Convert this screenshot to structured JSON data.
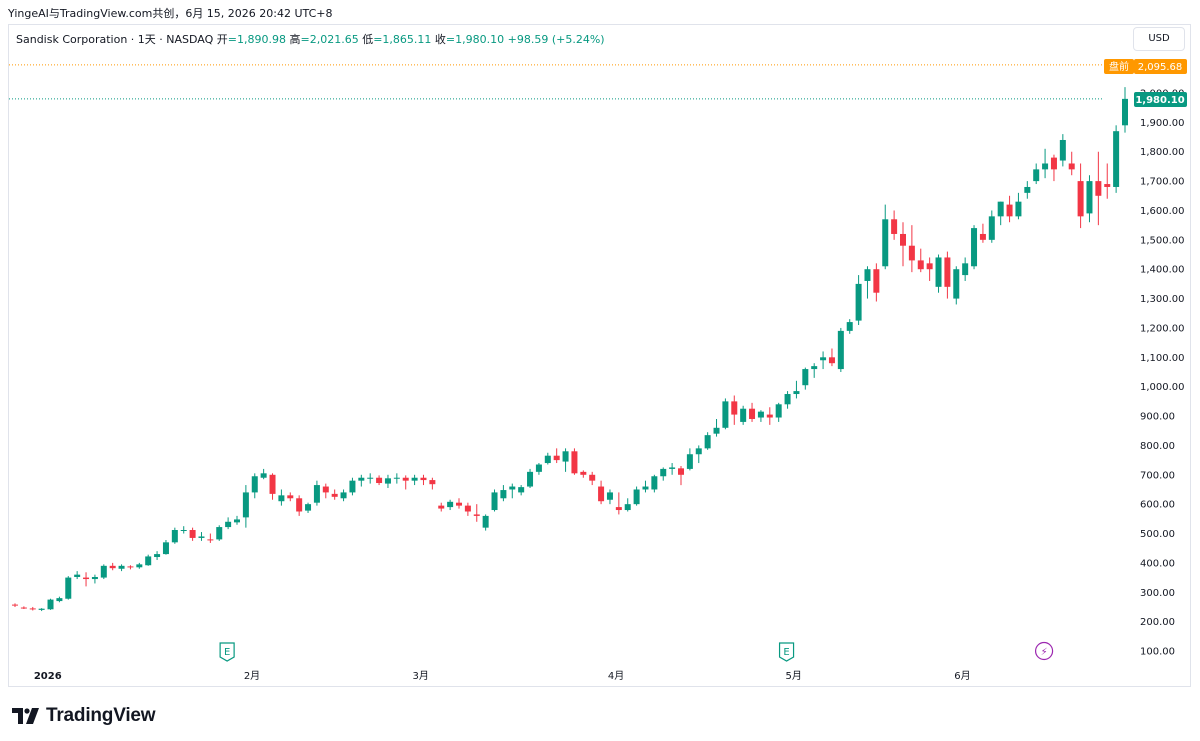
{
  "header": {
    "source_line": "YingeAI与TradingView.com共创，6月 15, 2026 20:42 UTC+8"
  },
  "legend": {
    "symbol": "Sandisk Corporation · 1天 · NASDAQ",
    "open_label": "开",
    "open": "=1,890.98",
    "high_label": "高",
    "high": "=2,021.65",
    "low_label": "低",
    "low": "=1,865.11",
    "close_label": "收",
    "close": "=1,980.10",
    "change": "+98.59 (+5.24%)"
  },
  "currency_button": "USD",
  "badges": {
    "premarket_label": "盘前",
    "premarket_value": "2,095.68",
    "last_value": "1,980.10"
  },
  "colors": {
    "up": "#089981",
    "down": "#f23645",
    "premarket": "#ff9800",
    "grid": "#e0e3eb"
  },
  "brand": {
    "name": "TradingView"
  },
  "chart_data": {
    "type": "candlestick",
    "y_axis": {
      "ticks": [
        "100.00",
        "200.00",
        "300.00",
        "400.00",
        "500.00",
        "600.00",
        "700.00",
        "800.00",
        "900.00",
        "1,000.00",
        "1,100.00",
        "1,200.00",
        "1,300.00",
        "1,400.00",
        "1,500.00",
        "1,600.00",
        "1,700.00",
        "1,800.00",
        "1,900.00",
        "2,000.00"
      ],
      "range": [
        75,
        2100
      ]
    },
    "x_axis": {
      "labels": [
        "2026",
        "2月",
        "3月",
        "4月",
        "5月",
        "6月"
      ],
      "label_index": [
        2,
        25,
        44,
        66,
        86,
        105
      ]
    },
    "event_markers": [
      {
        "type": "earnings",
        "symbol": "E",
        "index": 24
      },
      {
        "type": "earnings",
        "symbol": "E",
        "index": 87
      },
      {
        "type": "dividend",
        "symbol": "⚡",
        "index": 116
      }
    ],
    "price_lines": [
      {
        "name": "premarket",
        "value": 2095.68
      },
      {
        "name": "last",
        "value": 1980.1
      }
    ],
    "ohlc": [
      [
        258,
        262,
        250,
        255
      ],
      [
        248,
        252,
        243,
        247
      ],
      [
        245,
        250,
        238,
        242
      ],
      [
        240,
        246,
        236,
        244
      ],
      [
        242,
        278,
        240,
        275
      ],
      [
        270,
        285,
        266,
        280
      ],
      [
        278,
        355,
        275,
        350
      ],
      [
        352,
        372,
        345,
        360
      ],
      [
        350,
        368,
        320,
        345
      ],
      [
        345,
        360,
        330,
        352
      ],
      [
        350,
        395,
        345,
        390
      ],
      [
        390,
        400,
        375,
        382
      ],
      [
        380,
        395,
        372,
        390
      ],
      [
        388,
        392,
        378,
        385
      ],
      [
        385,
        400,
        380,
        395
      ],
      [
        392,
        428,
        390,
        422
      ],
      [
        420,
        440,
        410,
        430
      ],
      [
        430,
        478,
        428,
        470
      ],
      [
        470,
        520,
        465,
        512
      ],
      [
        510,
        525,
        500,
        512
      ],
      [
        512,
        520,
        475,
        485
      ],
      [
        485,
        505,
        475,
        490
      ],
      [
        480,
        500,
        468,
        478
      ],
      [
        480,
        528,
        475,
        522
      ],
      [
        522,
        555,
        515,
        540
      ],
      [
        538,
        560,
        530,
        548
      ],
      [
        555,
        665,
        520,
        640
      ],
      [
        640,
        705,
        620,
        695
      ],
      [
        690,
        720,
        685,
        705
      ],
      [
        700,
        705,
        615,
        635
      ],
      [
        610,
        650,
        595,
        630
      ],
      [
        630,
        640,
        610,
        620
      ],
      [
        620,
        630,
        560,
        575
      ],
      [
        578,
        605,
        570,
        600
      ],
      [
        605,
        680,
        595,
        665
      ],
      [
        660,
        670,
        620,
        640
      ],
      [
        635,
        650,
        615,
        625
      ],
      [
        620,
        650,
        610,
        640
      ],
      [
        640,
        690,
        630,
        680
      ],
      [
        680,
        700,
        660,
        690
      ],
      [
        690,
        705,
        670,
        690
      ],
      [
        690,
        698,
        665,
        672
      ],
      [
        670,
        700,
        655,
        688
      ],
      [
        688,
        705,
        670,
        690
      ],
      [
        690,
        698,
        650,
        680
      ],
      [
        680,
        700,
        665,
        690
      ],
      [
        690,
        700,
        665,
        682
      ],
      [
        682,
        690,
        650,
        668
      ],
      [
        595,
        605,
        575,
        585
      ],
      [
        590,
        615,
        580,
        608
      ],
      [
        605,
        620,
        585,
        595
      ],
      [
        595,
        605,
        560,
        575
      ],
      [
        565,
        600,
        540,
        560
      ],
      [
        520,
        565,
        510,
        560
      ],
      [
        580,
        650,
        575,
        640
      ],
      [
        620,
        665,
        610,
        648
      ],
      [
        650,
        670,
        620,
        660
      ],
      [
        640,
        665,
        630,
        658
      ],
      [
        660,
        720,
        655,
        710
      ],
      [
        710,
        740,
        700,
        735
      ],
      [
        740,
        775,
        735,
        765
      ],
      [
        765,
        790,
        740,
        750
      ],
      [
        745,
        790,
        710,
        780
      ],
      [
        780,
        790,
        700,
        705
      ],
      [
        710,
        715,
        690,
        700
      ],
      [
        700,
        710,
        665,
        680
      ],
      [
        660,
        680,
        600,
        610
      ],
      [
        615,
        650,
        600,
        640
      ],
      [
        590,
        640,
        565,
        580
      ],
      [
        580,
        620,
        575,
        600
      ],
      [
        600,
        660,
        595,
        650
      ],
      [
        650,
        680,
        640,
        660
      ],
      [
        650,
        700,
        640,
        695
      ],
      [
        695,
        725,
        680,
        720
      ],
      [
        720,
        740,
        700,
        725
      ],
      [
        722,
        730,
        665,
        700
      ],
      [
        720,
        790,
        715,
        770
      ],
      [
        770,
        800,
        740,
        790
      ],
      [
        790,
        845,
        785,
        835
      ],
      [
        840,
        890,
        830,
        860
      ],
      [
        860,
        960,
        855,
        950
      ],
      [
        950,
        970,
        870,
        905
      ],
      [
        880,
        935,
        870,
        925
      ],
      [
        925,
        945,
        880,
        890
      ],
      [
        895,
        920,
        880,
        915
      ],
      [
        905,
        930,
        870,
        895
      ],
      [
        895,
        945,
        880,
        940
      ],
      [
        940,
        985,
        925,
        975
      ],
      [
        975,
        1020,
        960,
        985
      ],
      [
        1005,
        1065,
        990,
        1060
      ],
      [
        1060,
        1080,
        1030,
        1070
      ],
      [
        1090,
        1120,
        1060,
        1100
      ],
      [
        1100,
        1130,
        1070,
        1080
      ],
      [
        1060,
        1200,
        1050,
        1190
      ],
      [
        1190,
        1230,
        1180,
        1220
      ],
      [
        1225,
        1380,
        1210,
        1350
      ],
      [
        1360,
        1410,
        1300,
        1400
      ],
      [
        1400,
        1420,
        1290,
        1320
      ],
      [
        1410,
        1620,
        1400,
        1570
      ],
      [
        1570,
        1600,
        1500,
        1520
      ],
      [
        1520,
        1560,
        1410,
        1480
      ],
      [
        1480,
        1550,
        1390,
        1430
      ],
      [
        1430,
        1470,
        1390,
        1400
      ],
      [
        1420,
        1440,
        1360,
        1400
      ],
      [
        1340,
        1450,
        1320,
        1440
      ],
      [
        1440,
        1460,
        1300,
        1340
      ],
      [
        1300,
        1410,
        1280,
        1400
      ],
      [
        1380,
        1440,
        1360,
        1420
      ],
      [
        1410,
        1550,
        1400,
        1540
      ],
      [
        1520,
        1555,
        1490,
        1500
      ],
      [
        1500,
        1600,
        1490,
        1580
      ],
      [
        1580,
        1630,
        1550,
        1630
      ],
      [
        1620,
        1650,
        1560,
        1580
      ],
      [
        1580,
        1660,
        1570,
        1630
      ],
      [
        1660,
        1700,
        1640,
        1680
      ],
      [
        1700,
        1760,
        1690,
        1740
      ],
      [
        1740,
        1810,
        1710,
        1760
      ],
      [
        1780,
        1790,
        1700,
        1740
      ],
      [
        1770,
        1860,
        1750,
        1840
      ],
      [
        1760,
        1800,
        1720,
        1740
      ],
      [
        1700,
        1760,
        1540,
        1580
      ],
      [
        1590,
        1720,
        1560,
        1700
      ],
      [
        1700,
        1800,
        1550,
        1650
      ],
      [
        1690,
        1760,
        1640,
        1680
      ],
      [
        1680,
        1890,
        1660,
        1870
      ],
      [
        1890,
        2020,
        1865,
        1980
      ]
    ]
  }
}
